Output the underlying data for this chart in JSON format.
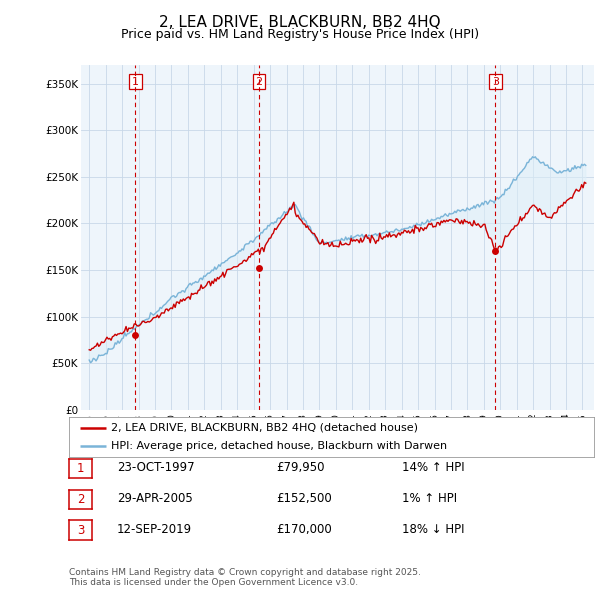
{
  "title": "2, LEA DRIVE, BLACKBURN, BB2 4HQ",
  "subtitle": "Price paid vs. HM Land Registry's House Price Index (HPI)",
  "ylim": [
    0,
    370000
  ],
  "yticks": [
    0,
    50000,
    100000,
    150000,
    200000,
    250000,
    300000,
    350000
  ],
  "ytick_labels": [
    "£0",
    "£50K",
    "£100K",
    "£150K",
    "£200K",
    "£250K",
    "£300K",
    "£350K"
  ],
  "sale_dates": [
    1997.81,
    2005.33,
    2019.7
  ],
  "sale_prices": [
    79950,
    152500,
    170000
  ],
  "sale_labels": [
    "1",
    "2",
    "3"
  ],
  "legend_entries": [
    "2, LEA DRIVE, BLACKBURN, BB2 4HQ (detached house)",
    "HPI: Average price, detached house, Blackburn with Darwen"
  ],
  "table_rows": [
    [
      "1",
      "23-OCT-1997",
      "£79,950",
      "14% ↑ HPI"
    ],
    [
      "2",
      "29-APR-2005",
      "£152,500",
      "1% ↑ HPI"
    ],
    [
      "3",
      "12-SEP-2019",
      "£170,000",
      "18% ↓ HPI"
    ]
  ],
  "footnote": "Contains HM Land Registry data © Crown copyright and database right 2025.\nThis data is licensed under the Open Government Licence v3.0.",
  "hpi_color": "#7ab4d8",
  "price_color": "#cc0000",
  "fill_color": "#ddeef8",
  "sale_marker_color": "#cc0000",
  "vline_color": "#cc0000",
  "background_color": "#ffffff",
  "chart_bg_color": "#eef5fb",
  "grid_color": "#c8d8e8",
  "title_fontsize": 11,
  "subtitle_fontsize": 9
}
